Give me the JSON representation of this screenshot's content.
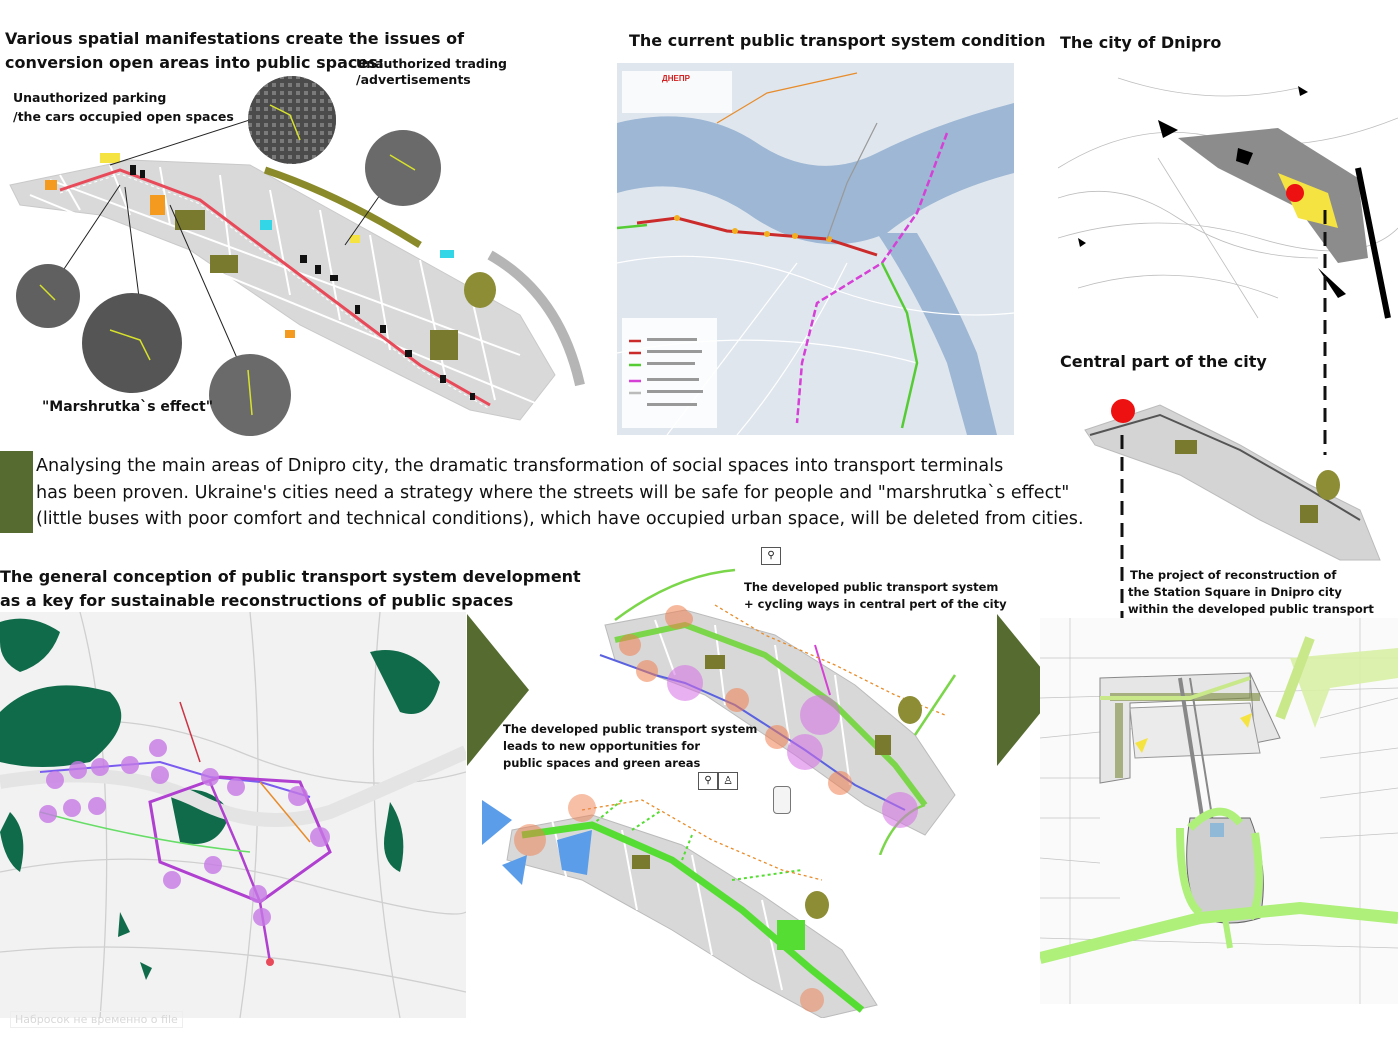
{
  "top_left": {
    "title_line1": "Various spatial manifestations create the issues of",
    "title_line2": "conversion open areas into public spaces:",
    "trading_label_line1": "Unauthorized trading",
    "trading_label_line2": "/advertisements",
    "parking_label_line1": "Unauthorized parking",
    "parking_label_line2": "/the cars occupied open spaces",
    "marshrutka_label": "\"Marshrutka`s effect\""
  },
  "top_middle": {
    "title": "The current public transport system condition",
    "map_header": "ДНЕПР"
  },
  "top_right": {
    "city_title": "The city of Dnipro",
    "central_title": "Central part of the city"
  },
  "analysis": {
    "line1": "Analysing the main areas of Dnipro city, the dramatic transformation of social spaces into transport terminals",
    "line2": "has been proven. Ukraine's cities need a strategy where the streets will be safe for people and \"marshrutka`s effect\"",
    "line3": "(little buses with poor comfort and technical conditions), which have occupied urban space, will be deleted from cities."
  },
  "bottom_left": {
    "title_line1": "The general conception of public transport system development",
    "title_line2": "as a key for sustainable reconstructions of public spaces"
  },
  "bottom_middle": {
    "developed_line1": "The developed public transport system",
    "developed_line2": "+ cycling ways in central pert of the city",
    "opportunities_line1": "The developed public transport system",
    "opportunities_line2": "leads to new opportunities for",
    "opportunities_line3": "public spaces and green areas"
  },
  "bottom_right": {
    "project_line1": "The project of reconstruction of",
    "project_line2": "the Station Square in Dnipro city",
    "project_line3": "within the developed public transport system"
  },
  "watermark": "Набросок не временно о file",
  "colors": {
    "olive_accent": "#556b2f",
    "bus_route": "#cc2b2b",
    "metro_pink": "#d640d6",
    "tram_green": "#55cc33",
    "red_marker": "#ee1111",
    "plan_green": "#aef07a",
    "forest": "#0f6b4a"
  },
  "icons": [
    "bicycle-icon",
    "pedestrian-icon",
    "tram-icon",
    "right-arrow-icon"
  ]
}
